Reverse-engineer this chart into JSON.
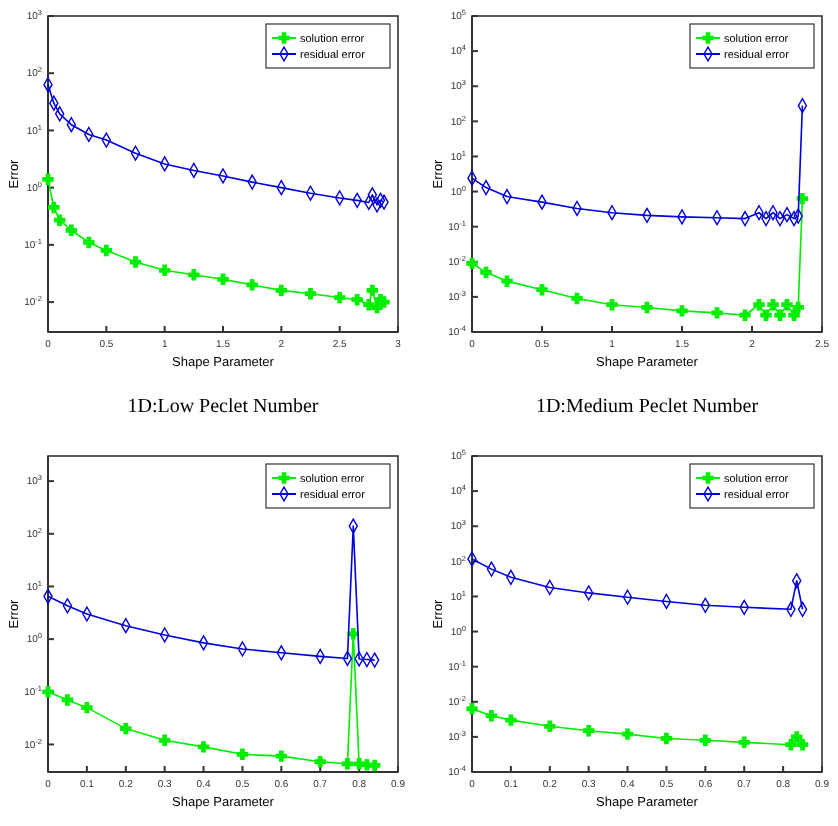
{
  "chart_data": [
    {
      "type": "line",
      "xlabel": "Shape Parameter",
      "ylabel": "Error",
      "annotations": [
        "1D:Low Peclet Number"
      ],
      "log": "y",
      "legend": "top right",
      "xlim": [
        0,
        3
      ],
      "xticks": [
        0,
        0.5,
        1,
        1.5,
        2,
        2.5,
        3
      ],
      "ylim": [
        0.003,
        1000
      ],
      "yticks": [
        {
          "value": 1000,
          "label": "10$^{3}$"
        },
        {
          "value": 100,
          "label": "10$^{2}$"
        },
        {
          "value": 10,
          "label": "10$^{1}$"
        },
        {
          "value": 1,
          "label": "10$^{0}$"
        },
        {
          "value": 0.1,
          "label": "10$^{-1}$"
        },
        {
          "value": 0.01,
          "label": "10$^{-2}$"
        }
      ],
      "series": [
        {
          "name": "solution error",
          "color": "#00ee00",
          "marker": "cross",
          "x": [
            0,
            0.05,
            0.1,
            0.2,
            0.35,
            0.5,
            0.75,
            1,
            1.25,
            1.5,
            1.75,
            2,
            2.25,
            2.5,
            2.65,
            2.75,
            2.78,
            2.82,
            2.85,
            2.88
          ],
          "values": [
            1.4,
            0.45,
            0.27,
            0.18,
            0.11,
            0.08,
            0.05,
            0.036,
            0.03,
            0.025,
            0.02,
            0.016,
            0.014,
            0.012,
            0.011,
            0.009,
            0.016,
            0.008,
            0.011,
            0.01
          ]
        },
        {
          "name": "residual error",
          "color": "#0000dd",
          "marker": "diamond",
          "x": [
            0,
            0.05,
            0.1,
            0.2,
            0.35,
            0.5,
            0.75,
            1,
            1.25,
            1.5,
            1.75,
            2,
            2.25,
            2.5,
            2.65,
            2.75,
            2.78,
            2.82,
            2.85,
            2.88
          ],
          "values": [
            63,
            30,
            19.5,
            12.6,
            8.5,
            6.8,
            4,
            2.6,
            2,
            1.6,
            1.25,
            1,
            0.8,
            0.66,
            0.6,
            0.55,
            0.75,
            0.5,
            0.6,
            0.56
          ]
        }
      ]
    },
    {
      "type": "line",
      "xlabel": "Shape Parameter",
      "ylabel": "Error",
      "annotations": [
        "1D:Medium Peclet Number"
      ],
      "log": "y",
      "legend": "top right",
      "xlim": [
        0,
        2.5
      ],
      "xticks": [
        0,
        0.5,
        1,
        1.5,
        2,
        2.5
      ],
      "ylim": [
        0.0001,
        100000
      ],
      "yticks": [
        {
          "value": 100000,
          "label": "10$^{5}$"
        },
        {
          "value": 10000,
          "label": "10$^{4}$"
        },
        {
          "value": 1000,
          "label": "10$^{3}$"
        },
        {
          "value": 100,
          "label": "10$^{2}$"
        },
        {
          "value": 10,
          "label": "10$^{1}$"
        },
        {
          "value": 1,
          "label": "10$^{0}$"
        },
        {
          "value": 0.1,
          "label": "10$^{-1}$"
        },
        {
          "value": 0.01,
          "label": "10$^{-2}$"
        },
        {
          "value": 0.001,
          "label": "10$^{-3}$"
        },
        {
          "value": 0.0001,
          "label": "10$^{-4}$"
        }
      ],
      "series": [
        {
          "name": "solution error",
          "color": "#00ee00",
          "marker": "cross",
          "x": [
            0,
            0.1,
            0.25,
            0.5,
            0.75,
            1,
            1.25,
            1.5,
            1.75,
            1.95,
            2.05,
            2.1,
            2.15,
            2.2,
            2.25,
            2.3,
            2.33,
            2.36
          ],
          "values": [
            0.009,
            0.005,
            0.0028,
            0.0016,
            0.0009,
            0.0006,
            0.0005,
            0.0004,
            0.00035,
            0.0003,
            0.0006,
            0.0003,
            0.0006,
            0.0003,
            0.0006,
            0.0003,
            0.0005,
            0.63
          ]
        },
        {
          "name": "residual error",
          "color": "#0000dd",
          "marker": "diamond",
          "x": [
            0,
            0.1,
            0.25,
            0.5,
            0.75,
            1,
            1.25,
            1.5,
            1.75,
            1.95,
            2.05,
            2.1,
            2.15,
            2.2,
            2.25,
            2.3,
            2.33,
            2.36
          ],
          "values": [
            2.4,
            1.3,
            0.72,
            0.5,
            0.33,
            0.25,
            0.21,
            0.19,
            0.18,
            0.17,
            0.25,
            0.17,
            0.25,
            0.17,
            0.22,
            0.17,
            0.2,
            280
          ]
        }
      ]
    },
    {
      "type": "line",
      "xlabel": "Shape Parameter",
      "ylabel": "Error",
      "log": "y",
      "legend": "top right",
      "xlim": [
        0,
        0.9
      ],
      "xticks": [
        0,
        0.1,
        0.2,
        0.3,
        0.4,
        0.5,
        0.6,
        0.7,
        0.8,
        0.9
      ],
      "ylim": [
        0.003,
        3000
      ],
      "yticks": [
        {
          "value": 1000,
          "label": "10$^{3}$"
        },
        {
          "value": 100,
          "label": "10$^{2}$"
        },
        {
          "value": 10,
          "label": "10$^{1}$"
        },
        {
          "value": 1,
          "label": "10$^{0}$"
        },
        {
          "value": 0.1,
          "label": "10$^{-1}$"
        },
        {
          "value": 0.01,
          "label": "10$^{-2}$"
        }
      ],
      "series": [
        {
          "name": "solution error",
          "color": "#00ee00",
          "marker": "cross",
          "x": [
            0,
            0.05,
            0.1,
            0.2,
            0.3,
            0.4,
            0.5,
            0.6,
            0.7,
            0.77,
            0.785,
            0.8,
            0.82,
            0.84
          ],
          "values": [
            0.1,
            0.07,
            0.05,
            0.02,
            0.012,
            0.009,
            0.0065,
            0.006,
            0.0047,
            0.0043,
            1.26,
            0.0043,
            0.0041,
            0.004
          ]
        },
        {
          "name": "residual error",
          "color": "#0000dd",
          "marker": "diamond",
          "x": [
            0,
            0.05,
            0.1,
            0.2,
            0.3,
            0.4,
            0.5,
            0.6,
            0.7,
            0.77,
            0.785,
            0.8,
            0.82,
            0.84
          ],
          "values": [
            6.5,
            4.3,
            3,
            1.8,
            1.2,
            0.85,
            0.65,
            0.55,
            0.47,
            0.43,
            140,
            0.42,
            0.41,
            0.4
          ]
        }
      ]
    },
    {
      "type": "line",
      "xlabel": "Shape Parameter",
      "ylabel": "Error",
      "log": "y",
      "legend": "top right",
      "xlim": [
        0,
        0.9
      ],
      "xticks": [
        0,
        0.1,
        0.2,
        0.3,
        0.4,
        0.5,
        0.6,
        0.7,
        0.8,
        0.9
      ],
      "ylim": [
        0.0001,
        100000
      ],
      "yticks": [
        {
          "value": 100000,
          "label": "10$^{5}$"
        },
        {
          "value": 10000,
          "label": "10$^{4}$"
        },
        {
          "value": 1000,
          "label": "10$^{3}$"
        },
        {
          "value": 100,
          "label": "10$^{2}$"
        },
        {
          "value": 10,
          "label": "10$^{1}$"
        },
        {
          "value": 1,
          "label": "10$^{0}$"
        },
        {
          "value": 0.1,
          "label": "10$^{-1}$"
        },
        {
          "value": 0.01,
          "label": "10$^{-2}$"
        },
        {
          "value": 0.001,
          "label": "10$^{-3}$"
        },
        {
          "value": 0.0001,
          "label": "10$^{-4}$"
        }
      ],
      "series": [
        {
          "name": "solution error",
          "color": "#00ee00",
          "marker": "cross",
          "x": [
            0,
            0.05,
            0.1,
            0.2,
            0.3,
            0.4,
            0.5,
            0.6,
            0.7,
            0.82,
            0.835,
            0.85
          ],
          "values": [
            0.0063,
            0.004,
            0.003,
            0.002,
            0.0015,
            0.0012,
            0.0009,
            0.0008,
            0.0007,
            0.0006,
            0.001,
            0.0006
          ]
        },
        {
          "name": "residual error",
          "color": "#0000dd",
          "marker": "diamond",
          "x": [
            0,
            0.05,
            0.1,
            0.2,
            0.3,
            0.4,
            0.5,
            0.6,
            0.7,
            0.82,
            0.835,
            0.85
          ],
          "values": [
            117,
            60,
            35,
            18,
            12.6,
            9.5,
            7.2,
            5.6,
            4.9,
            4.3,
            28,
            4.3
          ]
        }
      ]
    }
  ]
}
